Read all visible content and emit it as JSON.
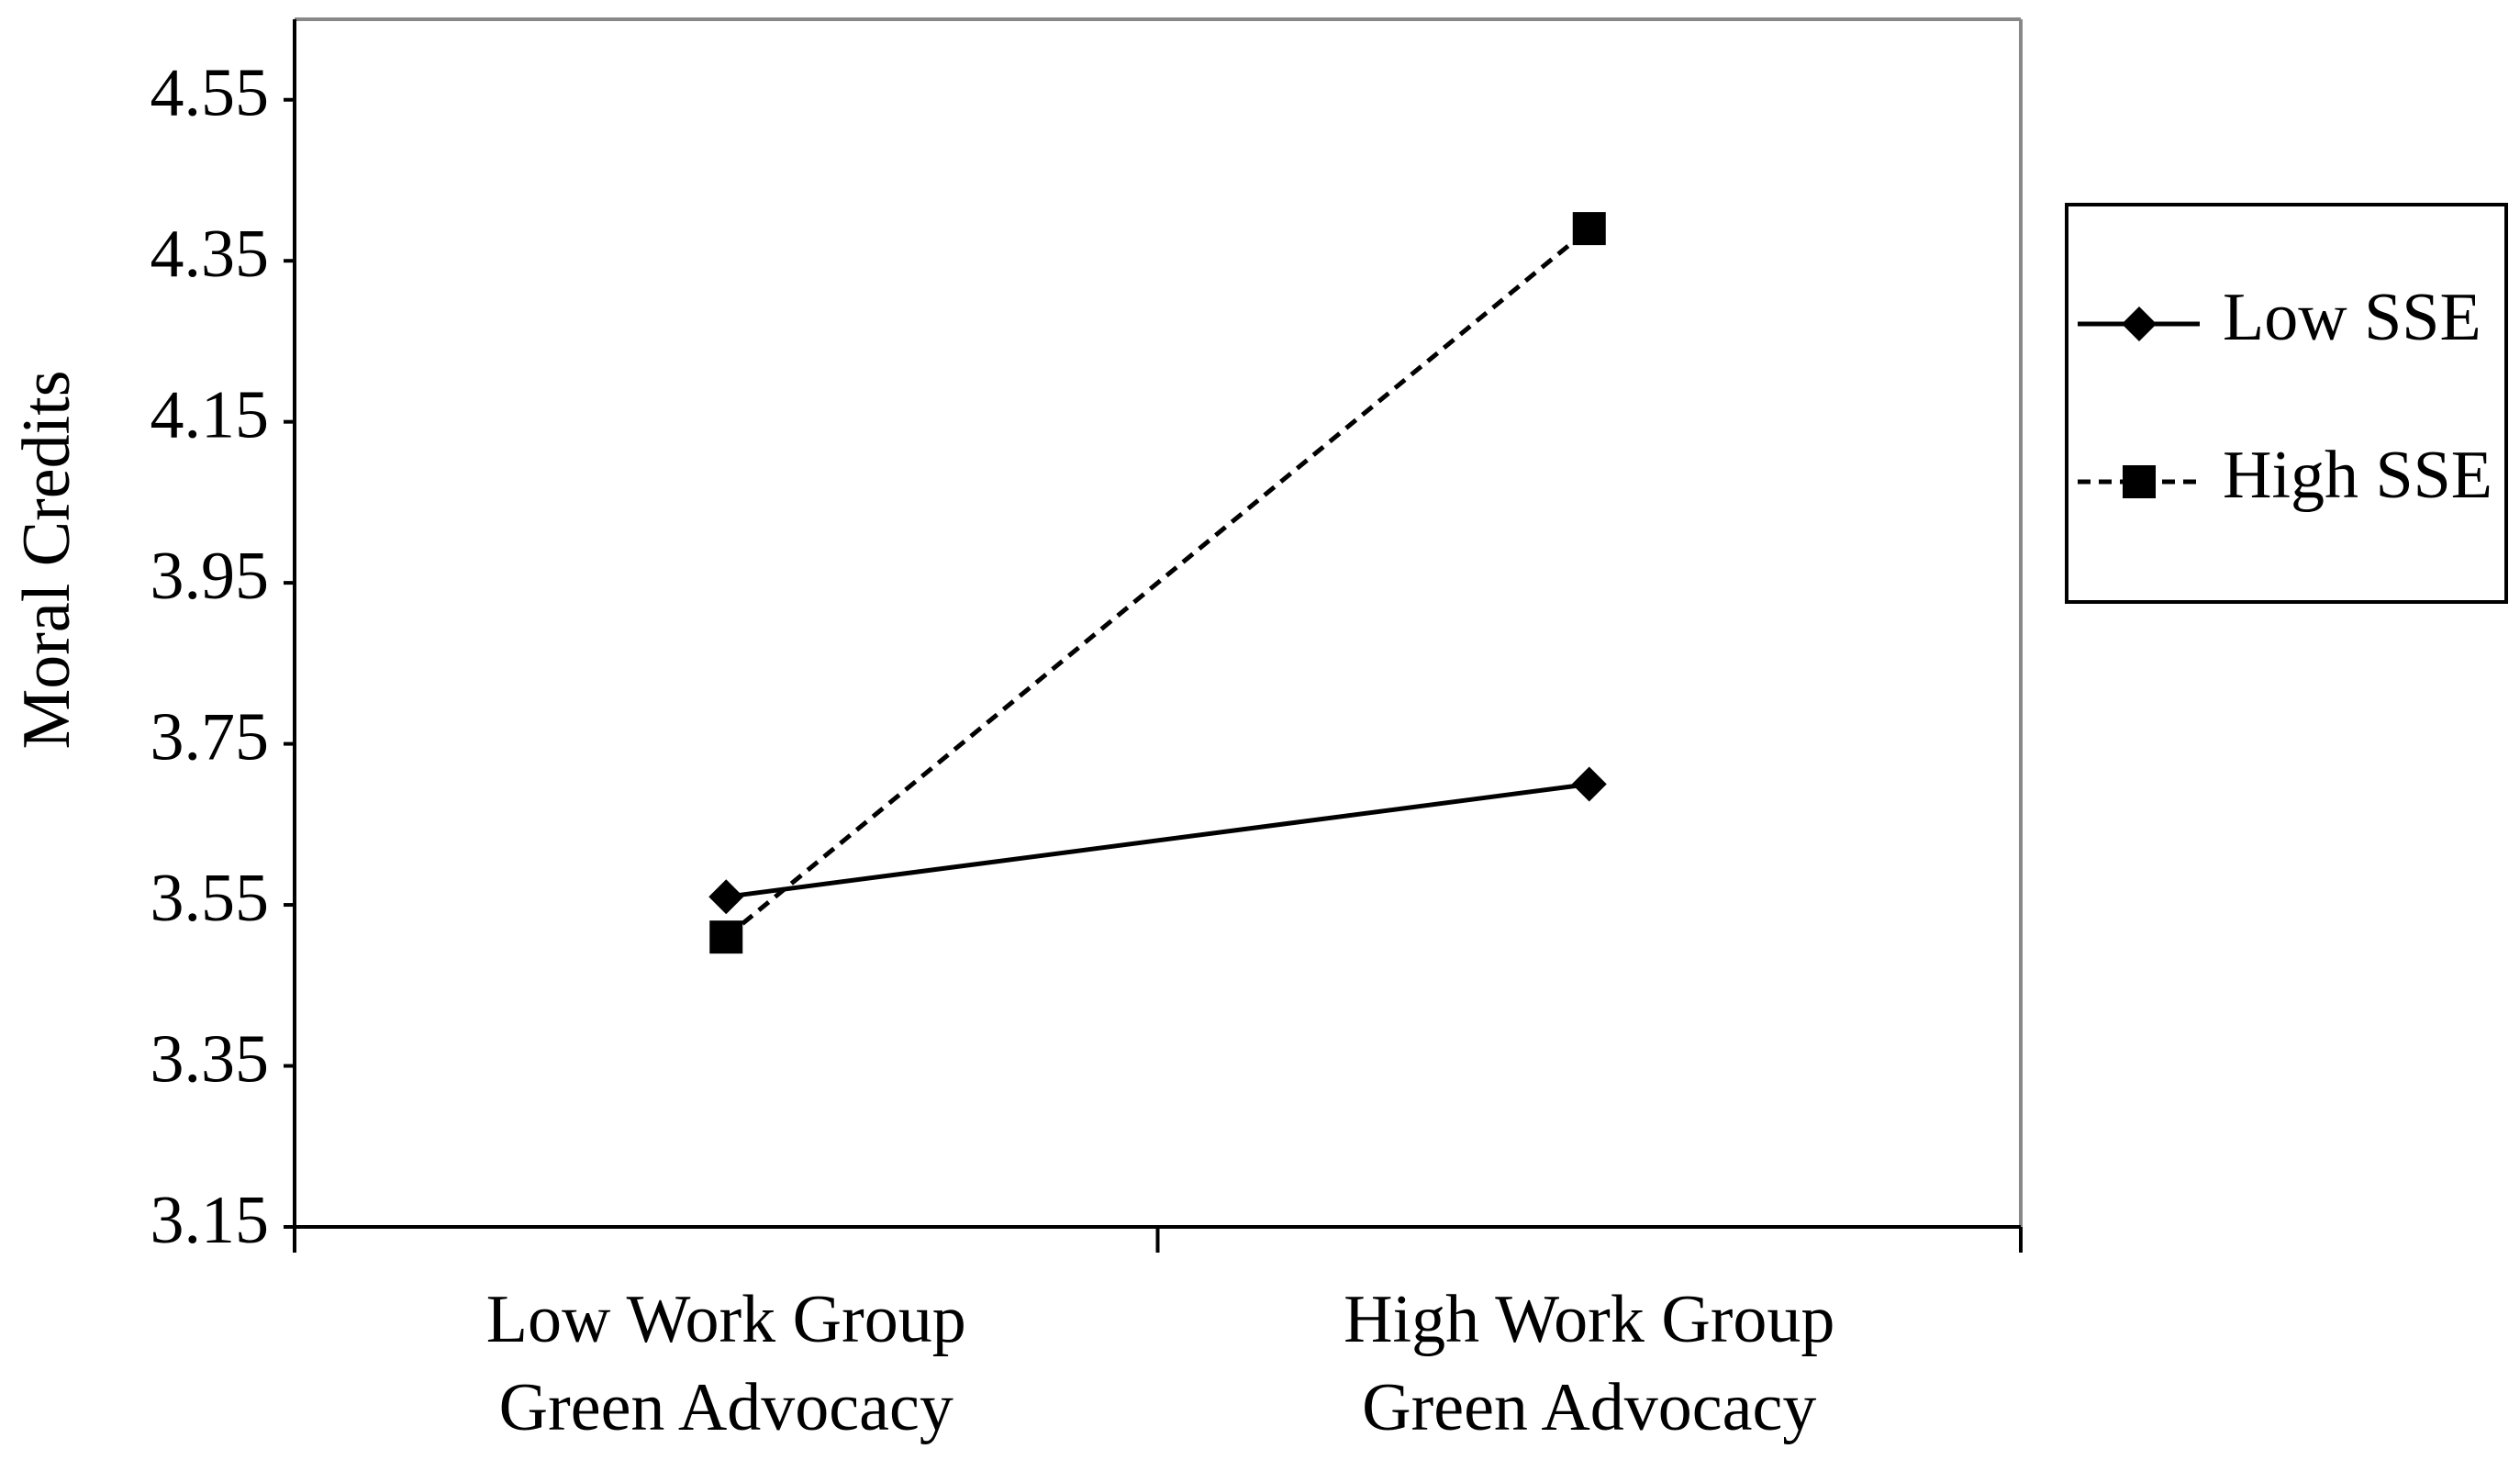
{
  "chart_data": {
    "type": "line",
    "y_label": "Moral Credits",
    "categories": [
      "Low Work Group\nGreen Advocacy",
      "High Work Group\nGreen Advocacy"
    ],
    "series": [
      {
        "name": "Low SSE",
        "color": "#000000",
        "marker": "diamond",
        "dash": false,
        "values": [
          3.56,
          3.7
        ]
      },
      {
        "name": "High SSE",
        "color": "#000000",
        "marker": "square",
        "dash": true,
        "values": [
          3.51,
          4.39
        ]
      }
    ],
    "ylim": [
      3.15,
      4.65
    ],
    "yticks": [
      3.15,
      3.35,
      3.55,
      3.75,
      3.95,
      4.15,
      4.35,
      4.55
    ],
    "grid": false,
    "legend": "right"
  }
}
